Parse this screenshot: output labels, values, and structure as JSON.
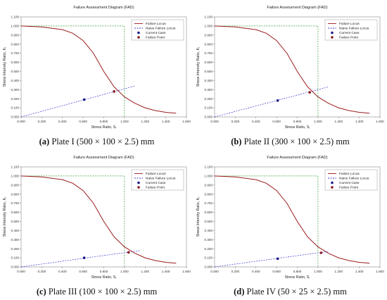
{
  "colors": {
    "failure_locus": "#9b1b1b",
    "naive_locus": "#3b3bd1",
    "cutoff": "#3aa03a",
    "current_case": "#1a1a8a",
    "failure_point": "#8a1a1a"
  },
  "chart_data": [
    {
      "type": "line",
      "title": "Failure Assessment Diagram (FAD)",
      "xlabel": "Stress Ratio, Sᵣ",
      "ylabel": "Stress Intensity Ratio, Kᵣ",
      "xlim": [
        0,
        1.6
      ],
      "ylim": [
        0,
        1.1
      ],
      "xticks": [
        "0.000",
        "0.200",
        "0.400",
        "0.600",
        "0.800",
        "1.000",
        "1.200",
        "1.400",
        "1.600"
      ],
      "yticks": [
        "0.000",
        "0.100",
        "0.200",
        "0.300",
        "0.400",
        "0.500",
        "0.600",
        "0.700",
        "0.800",
        "0.900",
        "1.000",
        "1.100"
      ],
      "legend": [
        "Failure Locus",
        "Naive Failure Locus",
        "Current Case",
        "Failure Point"
      ],
      "legend_position": "top-right",
      "grid": false,
      "series": [
        {
          "name": "Failure Locus",
          "x": [
            0,
            0.2,
            0.4,
            0.5,
            0.6,
            0.7,
            0.8,
            0.9,
            1.0,
            1.1,
            1.2,
            1.3,
            1.4,
            1.5
          ],
          "y": [
            1.0,
            0.99,
            0.96,
            0.92,
            0.84,
            0.7,
            0.5,
            0.33,
            0.22,
            0.15,
            0.1,
            0.07,
            0.05,
            0.04
          ]
        },
        {
          "name": "Naive Failure Locus",
          "x": [
            0,
            1.0
          ],
          "y": [
            1.0,
            1.0
          ],
          "cutoff_x": 1.0
        },
        {
          "name": "Load Line",
          "x": [
            0,
            1.1
          ],
          "y": [
            0,
            0.34
          ]
        },
        {
          "name": "Current Case",
          "x": [
            0.61
          ],
          "y": [
            0.19
          ]
        },
        {
          "name": "Failure Point",
          "x": [
            0.9
          ],
          "y": [
            0.28
          ]
        }
      ],
      "caption": {
        "letter": "(a)",
        "text": " Plate I (500 × 100 × 2.5) mm"
      }
    },
    {
      "type": "line",
      "title": "Failure Assessment Diagram (FAD)",
      "xlabel": "Stress Ratio, Sᵣ",
      "ylabel": "Stress Intensity Ratio, Kᵣ",
      "xlim": [
        0,
        1.6
      ],
      "ylim": [
        0,
        1.1
      ],
      "xticks": [
        "0.000",
        "0.200",
        "0.400",
        "0.600",
        "0.800",
        "1.000",
        "1.200",
        "1.400",
        "1.600"
      ],
      "yticks": [
        "0.000",
        "0.100",
        "0.200",
        "0.300",
        "0.400",
        "0.500",
        "0.600",
        "0.700",
        "0.800",
        "0.900",
        "1.000",
        "1.100"
      ],
      "legend": [
        "Failure Locus",
        "Naive Failure Locus",
        "Current Case",
        "Failure Point"
      ],
      "legend_position": "top-right",
      "grid": false,
      "series": [
        {
          "name": "Failure Locus",
          "x": [
            0,
            0.2,
            0.4,
            0.5,
            0.6,
            0.7,
            0.8,
            0.9,
            1.0,
            1.1,
            1.2,
            1.3,
            1.4,
            1.5
          ],
          "y": [
            1.0,
            0.99,
            0.96,
            0.92,
            0.84,
            0.7,
            0.5,
            0.33,
            0.22,
            0.15,
            0.1,
            0.07,
            0.05,
            0.04
          ]
        },
        {
          "name": "Naive Failure Locus",
          "x": [
            0,
            1.0
          ],
          "y": [
            1.0,
            1.0
          ],
          "cutoff_x": 1.0
        },
        {
          "name": "Load Line",
          "x": [
            0,
            1.1
          ],
          "y": [
            0,
            0.33
          ]
        },
        {
          "name": "Current Case",
          "x": [
            0.61
          ],
          "y": [
            0.18
          ]
        },
        {
          "name": "Failure Point",
          "x": [
            0.92
          ],
          "y": [
            0.27
          ]
        }
      ],
      "caption": {
        "letter": "(b)",
        "text": " Plate II (300 × 100 × 2.5) mm"
      }
    },
    {
      "type": "line",
      "title": "Failure Assessment Diagram (FAD)",
      "xlabel": "Stress Ratio, Sᵣ",
      "ylabel": "Stress Intensity Ratio, Kᵣ",
      "xlim": [
        0,
        1.6
      ],
      "ylim": [
        0,
        1.1
      ],
      "xticks": [
        "0.000",
        "0.200",
        "0.400",
        "0.600",
        "0.800",
        "1.000",
        "1.200",
        "1.400",
        "1.600"
      ],
      "yticks": [
        "0.000",
        "0.100",
        "0.200",
        "0.300",
        "0.400",
        "0.500",
        "0.600",
        "0.700",
        "0.800",
        "0.900",
        "1.000",
        "1.100"
      ],
      "legend": [
        "Failure Locus",
        "Naive Failure Locus",
        "Current Case",
        "Failure Point"
      ],
      "legend_position": "top-right",
      "grid": false,
      "series": [
        {
          "name": "Failure Locus",
          "x": [
            0,
            0.2,
            0.4,
            0.5,
            0.6,
            0.7,
            0.8,
            0.9,
            1.0,
            1.1,
            1.2,
            1.3,
            1.4,
            1.5
          ],
          "y": [
            1.0,
            0.99,
            0.96,
            0.92,
            0.84,
            0.7,
            0.5,
            0.33,
            0.22,
            0.15,
            0.1,
            0.07,
            0.05,
            0.04
          ]
        },
        {
          "name": "Naive Failure Locus",
          "x": [
            0,
            1.0
          ],
          "y": [
            1.0,
            1.0
          ],
          "cutoff_x": 1.0
        },
        {
          "name": "Load Line",
          "x": [
            0,
            1.15
          ],
          "y": [
            0,
            0.18
          ]
        },
        {
          "name": "Current Case",
          "x": [
            0.61
          ],
          "y": [
            0.1
          ]
        },
        {
          "name": "Failure Point",
          "x": [
            1.04
          ],
          "y": [
            0.16
          ]
        }
      ],
      "caption": {
        "letter": "(c)",
        "text": " Plate III (100 × 100 × 2.5) mm"
      }
    },
    {
      "type": "line",
      "title": "Failure Assessment Diagram (FAD)",
      "xlabel": "Stress Ratio, Sᵣ",
      "ylabel": "Stress Intensity Ratio, Kᵣ",
      "xlim": [
        0,
        1.6
      ],
      "ylim": [
        0,
        1.1
      ],
      "xticks": [
        "0.000",
        "0.200",
        "0.400",
        "0.600",
        "0.800",
        "1.000",
        "1.200",
        "1.400",
        "1.600"
      ],
      "yticks": [
        "0.000",
        "0.100",
        "0.200",
        "0.300",
        "0.400",
        "0.500",
        "0.600",
        "0.700",
        "0.800",
        "0.900",
        "1.000",
        "1.100"
      ],
      "legend": [
        "Failure Locus",
        "Naive Failure Locus",
        "Current Case",
        "Failure Point"
      ],
      "legend_position": "top-right",
      "grid": false,
      "series": [
        {
          "name": "Failure Locus",
          "x": [
            0,
            0.2,
            0.4,
            0.5,
            0.6,
            0.7,
            0.8,
            0.9,
            1.0,
            1.1,
            1.2,
            1.3,
            1.4,
            1.5
          ],
          "y": [
            1.0,
            0.99,
            0.96,
            0.92,
            0.84,
            0.7,
            0.5,
            0.33,
            0.22,
            0.15,
            0.1,
            0.07,
            0.05,
            0.04
          ]
        },
        {
          "name": "Naive Failure Locus",
          "x": [
            0,
            1.0
          ],
          "y": [
            1.0,
            1.0
          ],
          "cutoff_x": 1.0
        },
        {
          "name": "Load Line",
          "x": [
            0,
            1.1
          ],
          "y": [
            0,
            0.17
          ]
        },
        {
          "name": "Current Case",
          "x": [
            0.61
          ],
          "y": [
            0.09
          ]
        },
        {
          "name": "Failure Point",
          "x": [
            1.03
          ],
          "y": [
            0.155
          ]
        }
      ],
      "caption": {
        "letter": "(d)",
        "text": " Plate IV (50 × 25 × 2.5) mm"
      }
    }
  ]
}
